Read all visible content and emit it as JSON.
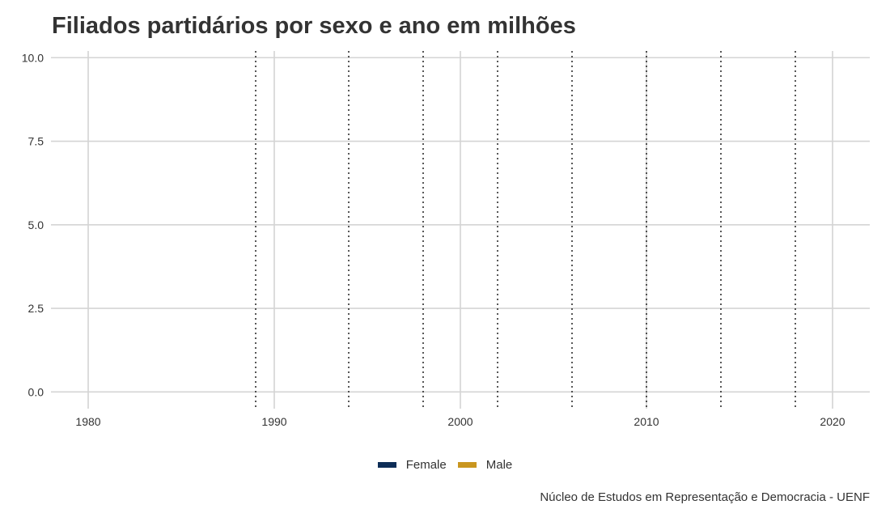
{
  "chart_data": {
    "type": "line",
    "title": "Filiados partidários por sexo e ano em milhões",
    "xlabel": "",
    "ylabel": "",
    "xlim": [
      1978,
      2022
    ],
    "ylim": [
      -0.5,
      10.2
    ],
    "x_ticks": [
      1980,
      1990,
      2000,
      2010,
      2020
    ],
    "x_tick_labels": [
      "1980",
      "1990",
      "2000",
      "2010",
      "2020"
    ],
    "y_ticks": [
      0,
      2.5,
      5,
      7.5,
      10
    ],
    "y_tick_labels": [
      "0.0",
      "2.5",
      "5.0",
      "7.5",
      "10.0"
    ],
    "grid": true,
    "vlines": [
      1989,
      1994,
      1998,
      2002,
      2006,
      2010,
      2014,
      2018
    ],
    "series": [
      {
        "name": "Female",
        "color": "#0d2d57",
        "values": []
      },
      {
        "name": "Male",
        "color": "#c9961f",
        "values": []
      }
    ],
    "legend_position": "bottom",
    "caption": "Núcleo de Estudos em Representação e Democracia - UENF"
  }
}
